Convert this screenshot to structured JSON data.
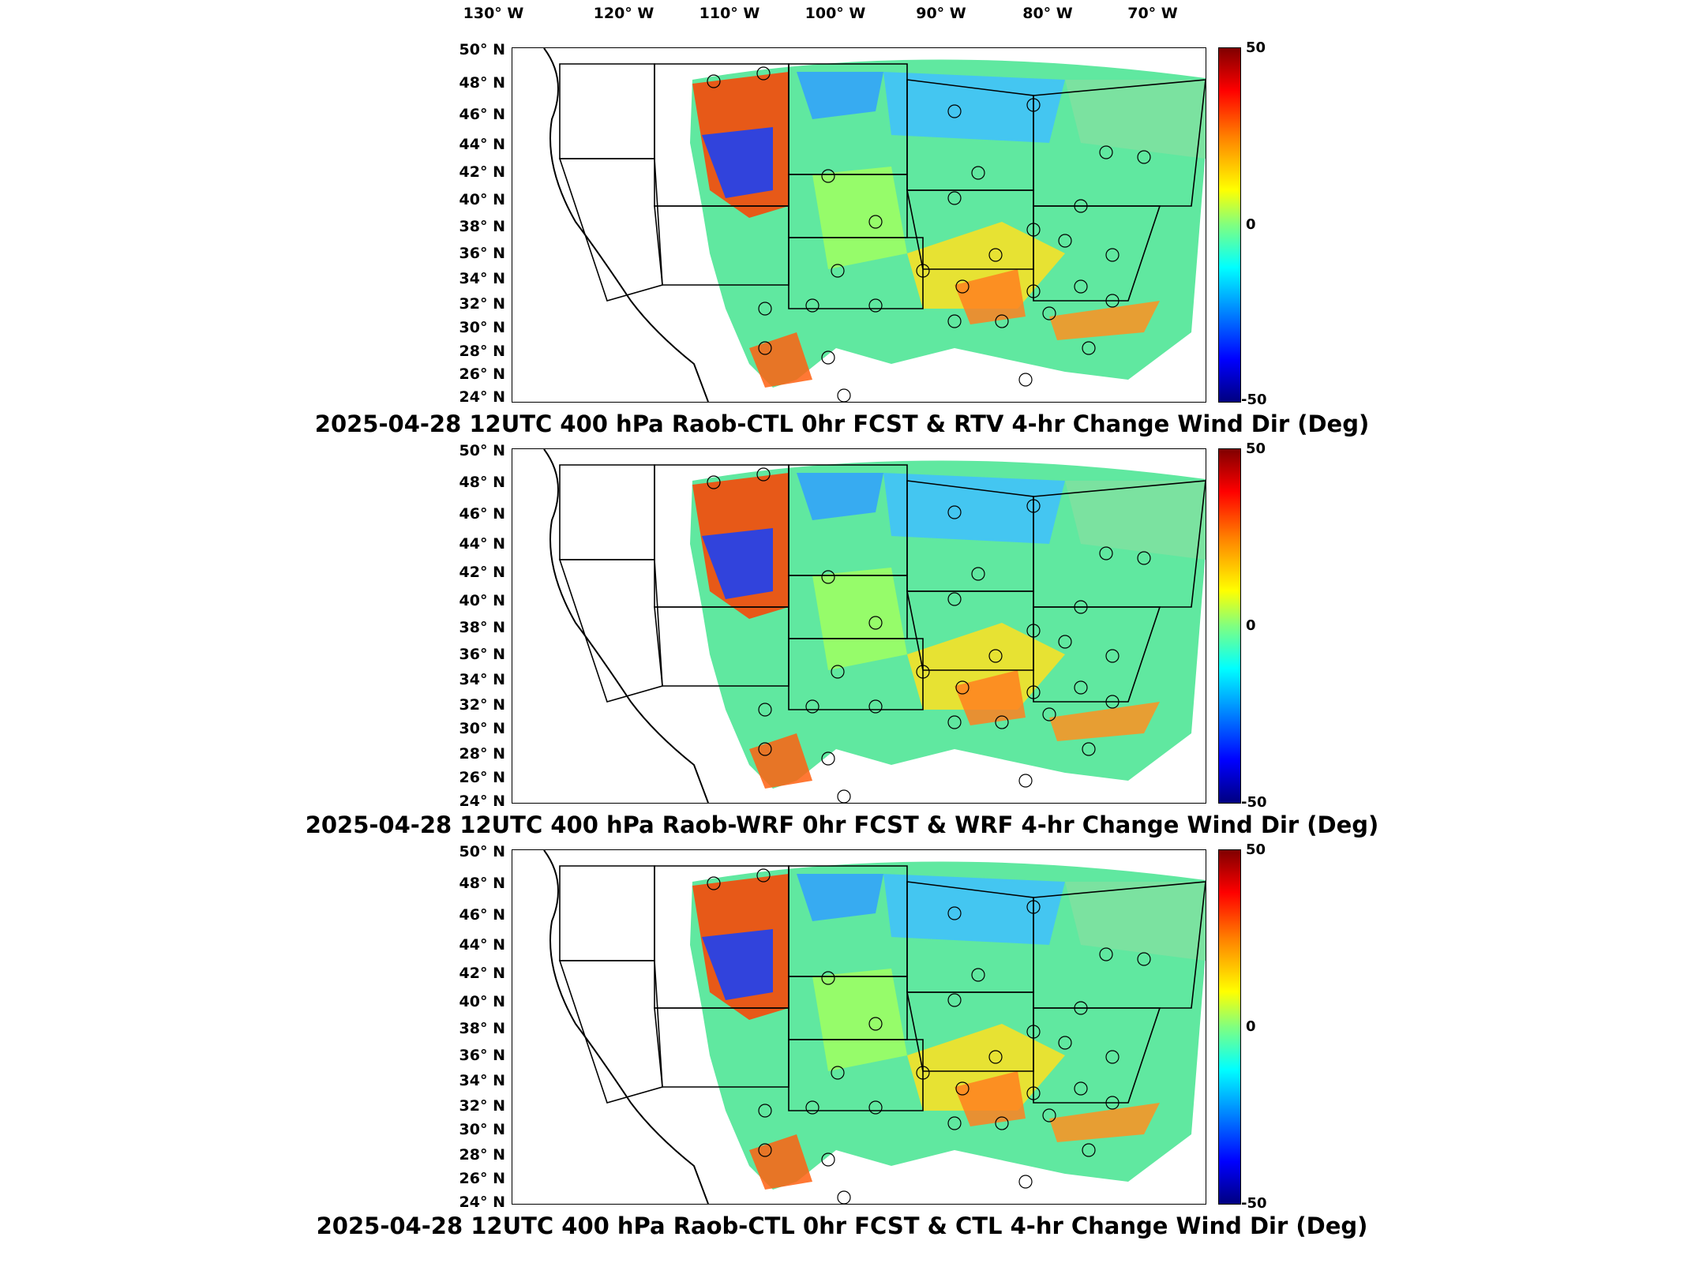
{
  "chart_data": [
    {
      "type": "heatmap",
      "title": "2025-04-28 12UTC 400 hPa Raob-CTL 0hr FCST & RTV 4-hr Change Wind Dir (Deg)",
      "xlabel": "",
      "ylabel": "",
      "x_ticks": [
        "130° W",
        "120° W",
        "110° W",
        "100° W",
        "90° W",
        "80° W",
        "70° W"
      ],
      "y_ticks": [
        "50° N",
        "48° N",
        "46° N",
        "44° N",
        "42° N",
        "40° N",
        "38° N",
        "36° N",
        "34° N",
        "32° N",
        "30° N",
        "28° N",
        "26° N",
        "24° N"
      ],
      "colorbar": {
        "max": "50",
        "mid": "0",
        "min": "-50",
        "colormap": "jet"
      },
      "xlim": [
        -135,
        -65
      ],
      "ylim": [
        24,
        50
      ]
    },
    {
      "type": "heatmap",
      "title": "2025-04-28 12UTC 400 hPa Raob-WRF 0hr FCST & WRF 4-hr Change Wind Dir (Deg)",
      "xlabel": "",
      "ylabel": "",
      "y_ticks": [
        "50° N",
        "48° N",
        "46° N",
        "44° N",
        "42° N",
        "40° N",
        "38° N",
        "36° N",
        "34° N",
        "32° N",
        "30° N",
        "28° N",
        "26° N",
        "24° N"
      ],
      "colorbar": {
        "max": "50",
        "mid": "0",
        "min": "-50",
        "colormap": "jet"
      },
      "xlim": [
        -135,
        -65
      ],
      "ylim": [
        24,
        50
      ]
    },
    {
      "type": "heatmap",
      "title": "2025-04-28 12UTC 400 hPa Raob-CTL 0hr FCST & CTL 4-hr Change Wind Dir (Deg)",
      "xlabel": "",
      "ylabel": "",
      "y_ticks": [
        "50° N",
        "48° N",
        "46° N",
        "44° N",
        "42° N",
        "40° N",
        "38° N",
        "36° N",
        "34° N",
        "32° N",
        "30° N",
        "28° N",
        "26° N",
        "24° N"
      ],
      "colorbar": {
        "max": "50",
        "mid": "0",
        "min": "-50",
        "colormap": "jet"
      },
      "xlim": [
        -135,
        -65
      ],
      "ylim": [
        24,
        50
      ]
    }
  ]
}
